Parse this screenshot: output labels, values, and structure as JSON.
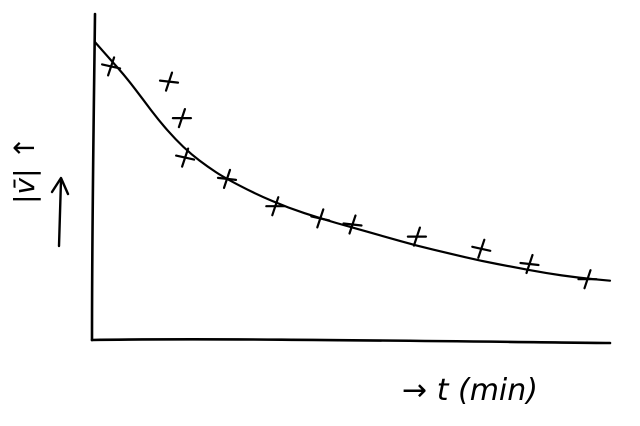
{
  "chart_data": {
    "type": "scatter",
    "title": "",
    "xlabel": "→ t (min)",
    "ylabel": "|v̄| ↑",
    "x_ticks": [],
    "y_ticks": [],
    "grid": false,
    "legend": "none",
    "points": [
      {
        "x": 0.5,
        "y": 9.0
      },
      {
        "x": 2.3,
        "y": 8.5
      },
      {
        "x": 2.7,
        "y": 7.3
      },
      {
        "x": 2.8,
        "y": 6.0
      },
      {
        "x": 4.1,
        "y": 5.3
      },
      {
        "x": 5.6,
        "y": 4.4
      },
      {
        "x": 7.0,
        "y": 4.0
      },
      {
        "x": 8.0,
        "y": 3.8
      },
      {
        "x": 10.0,
        "y": 3.4
      },
      {
        "x": 12.0,
        "y": 3.0
      },
      {
        "x": 13.5,
        "y": 2.5
      },
      {
        "x": 15.3,
        "y": 2.0
      }
    ],
    "fit_curve": [
      {
        "x": 0.0,
        "y": 9.8
      },
      {
        "x": 0.5,
        "y": 9.2
      },
      {
        "x": 1.0,
        "y": 8.6
      },
      {
        "x": 1.5,
        "y": 7.9
      },
      {
        "x": 2.0,
        "y": 7.2
      },
      {
        "x": 2.5,
        "y": 6.6
      },
      {
        "x": 3.0,
        "y": 6.1
      },
      {
        "x": 3.5,
        "y": 5.7
      },
      {
        "x": 4.0,
        "y": 5.35
      },
      {
        "x": 5.0,
        "y": 4.8
      },
      {
        "x": 6.0,
        "y": 4.35
      },
      {
        "x": 7.0,
        "y": 4.0
      },
      {
        "x": 8.0,
        "y": 3.7
      },
      {
        "x": 9.0,
        "y": 3.4
      },
      {
        "x": 10.0,
        "y": 3.1
      },
      {
        "x": 11.0,
        "y": 2.85
      },
      {
        "x": 12.0,
        "y": 2.6
      },
      {
        "x": 13.0,
        "y": 2.4
      },
      {
        "x": 14.0,
        "y": 2.2
      },
      {
        "x": 15.0,
        "y": 2.05
      },
      {
        "x": 16.0,
        "y": 1.95
      }
    ],
    "xlim": [
      0,
      16
    ],
    "ylim": [
      0,
      10
    ]
  }
}
